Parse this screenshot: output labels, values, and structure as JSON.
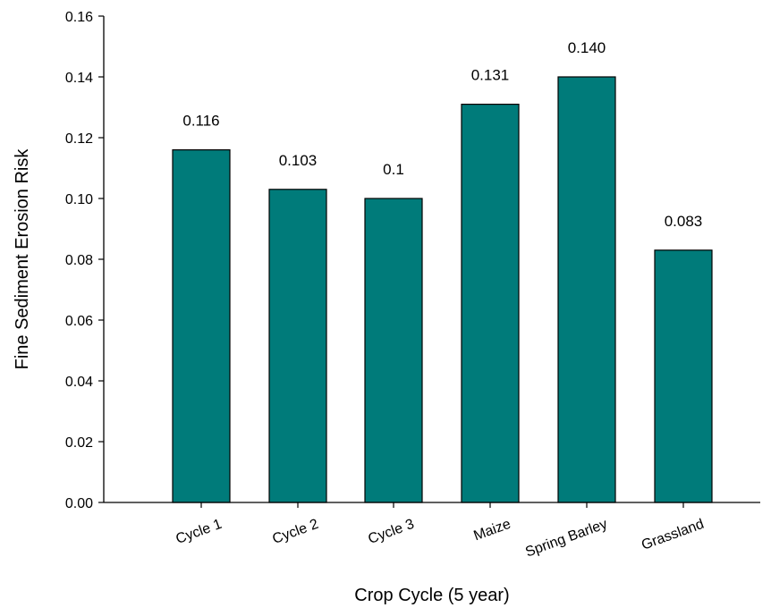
{
  "chart_data": {
    "type": "bar",
    "title": "",
    "xlabel": "Crop Cycle (5 year)",
    "ylabel": "Fine Sediment Erosion Risk",
    "categories": [
      "Cycle 1",
      "Cycle 2",
      "Cycle 3",
      "Maize",
      "Spring Barley",
      "Grassland"
    ],
    "values": [
      0.116,
      0.103,
      0.1,
      0.131,
      0.14,
      0.083
    ],
    "data_labels": [
      "0.116",
      "0.103",
      "0.1",
      "0.131",
      "0.140",
      "0.083"
    ],
    "ylim": [
      0,
      0.16
    ],
    "yticks": [
      "0.00",
      "0.02",
      "0.04",
      "0.06",
      "0.08",
      "0.10",
      "0.12",
      "0.14",
      "0.16"
    ],
    "grid": false,
    "legend": "none",
    "colors": {
      "bar": "#007b7a",
      "bar_edge": "#000000",
      "axis": "#000000"
    }
  }
}
